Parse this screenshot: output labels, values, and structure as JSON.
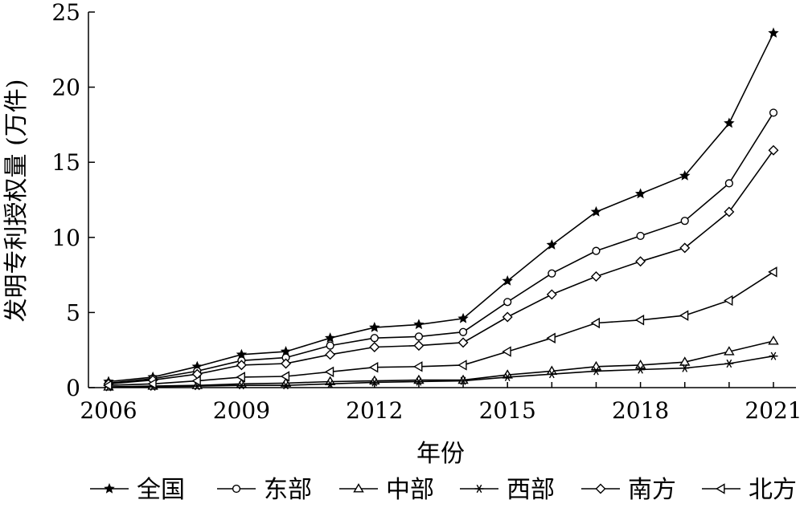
{
  "chart_data": {
    "type": "line",
    "title": "",
    "xlabel": "年份",
    "ylabel": "发明专利授权量 (万件)",
    "x": [
      2006,
      2007,
      2008,
      2009,
      2010,
      2011,
      2012,
      2013,
      2014,
      2015,
      2016,
      2017,
      2018,
      2019,
      2020,
      2021
    ],
    "xlim": [
      2006,
      2021
    ],
    "ylim": [
      0,
      25
    ],
    "xticks": [
      "2006",
      "2009",
      "2012",
      "2015",
      "2018",
      "2021"
    ],
    "yticks": [
      "0",
      "5",
      "10",
      "15",
      "20",
      "25"
    ],
    "grid": false,
    "legend_position": "bottom",
    "series": [
      {
        "name": "全国",
        "marker": "star",
        "values": [
          0.4,
          0.7,
          1.4,
          2.2,
          2.4,
          3.3,
          4.0,
          4.2,
          4.6,
          7.1,
          9.5,
          11.7,
          12.9,
          14.1,
          17.6,
          23.6
        ]
      },
      {
        "name": "东部",
        "marker": "circle",
        "values": [
          0.3,
          0.6,
          1.1,
          1.8,
          2.0,
          2.8,
          3.3,
          3.4,
          3.7,
          5.7,
          7.6,
          9.1,
          10.1,
          11.1,
          13.6,
          18.3
        ]
      },
      {
        "name": "中部",
        "marker": "triangle-up",
        "values": [
          0.05,
          0.1,
          0.15,
          0.25,
          0.3,
          0.4,
          0.45,
          0.5,
          0.5,
          0.85,
          1.1,
          1.4,
          1.5,
          1.7,
          2.4,
          3.1
        ]
      },
      {
        "name": "西部",
        "marker": "asterisk",
        "values": [
          0.03,
          0.06,
          0.1,
          0.15,
          0.15,
          0.25,
          0.35,
          0.4,
          0.45,
          0.7,
          0.9,
          1.1,
          1.2,
          1.3,
          1.6,
          2.1
        ]
      },
      {
        "name": "南方",
        "marker": "diamond",
        "values": [
          0.25,
          0.5,
          0.9,
          1.5,
          1.6,
          2.2,
          2.7,
          2.8,
          3.0,
          4.7,
          6.2,
          7.4,
          8.4,
          9.3,
          11.7,
          15.8
        ]
      },
      {
        "name": "北方",
        "marker": "triangle-left",
        "values": [
          0.15,
          0.25,
          0.45,
          0.7,
          0.75,
          1.05,
          1.35,
          1.4,
          1.5,
          2.4,
          3.3,
          4.3,
          4.5,
          4.8,
          5.8,
          7.7
        ]
      }
    ]
  }
}
